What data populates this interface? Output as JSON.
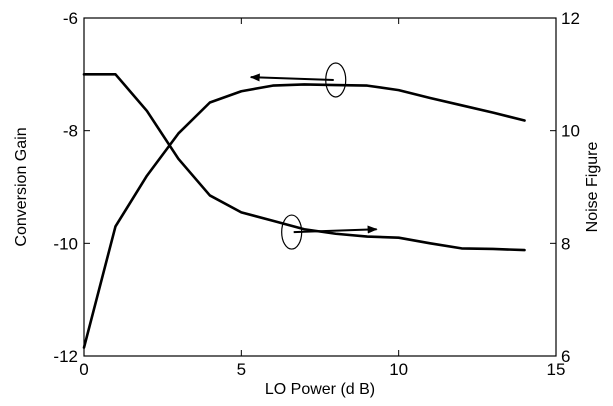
{
  "chart_data": {
    "type": "line",
    "title": "",
    "xlabel": "LO Power (d B)",
    "ylabel_left": "Conversion Gain",
    "ylabel_right": "Noise Figure",
    "xlim": [
      0,
      15
    ],
    "ylim_left": [
      -12,
      -6
    ],
    "ylim_right": [
      6,
      12
    ],
    "x_ticks": [
      0,
      5,
      10,
      15
    ],
    "y_ticks_left": [
      -12,
      -10,
      -8,
      -6
    ],
    "y_ticks_right": [
      6,
      8,
      10,
      12
    ],
    "x_tick_labels": [
      "0",
      "5",
      "10",
      "15"
    ],
    "y_tick_labels_left": [
      "-12",
      "-10",
      "-8",
      "-6"
    ],
    "y_tick_labels_right": [
      "6",
      "8",
      "10",
      "12"
    ],
    "grid": false,
    "line_color": "#000000",
    "series": [
      {
        "axis": "left",
        "x": [
          0,
          1,
          2,
          3,
          4,
          5,
          6,
          7,
          8,
          9,
          10,
          11,
          12,
          13,
          14
        ],
        "y": [
          -11.85,
          -9.7,
          -8.8,
          -8.05,
          -7.5,
          -7.3,
          -7.2,
          -7.18,
          -7.19,
          -7.2,
          -7.28,
          -7.42,
          -7.55,
          -7.68,
          -7.82
        ]
      },
      {
        "axis": "right",
        "x": [
          0,
          1,
          2,
          3,
          4,
          5,
          6,
          7,
          8,
          9,
          10,
          11,
          12,
          13,
          14
        ],
        "y": [
          11.0,
          11.0,
          10.35,
          9.5,
          8.85,
          8.55,
          8.4,
          8.25,
          8.17,
          8.12,
          8.1,
          8.0,
          7.91,
          7.9,
          7.88
        ]
      }
    ],
    "annotations": [
      {
        "type": "ellipse-arrow",
        "target": "left",
        "at": [
          8,
          -7.1
        ],
        "arrow_to": [
          5.3,
          -7.05
        ],
        "direction": "left"
      },
      {
        "type": "ellipse-arrow",
        "target": "right",
        "at": [
          6.6,
          8.2
        ],
        "arrow_to": [
          9.3,
          8.25
        ],
        "direction": "right"
      }
    ]
  }
}
